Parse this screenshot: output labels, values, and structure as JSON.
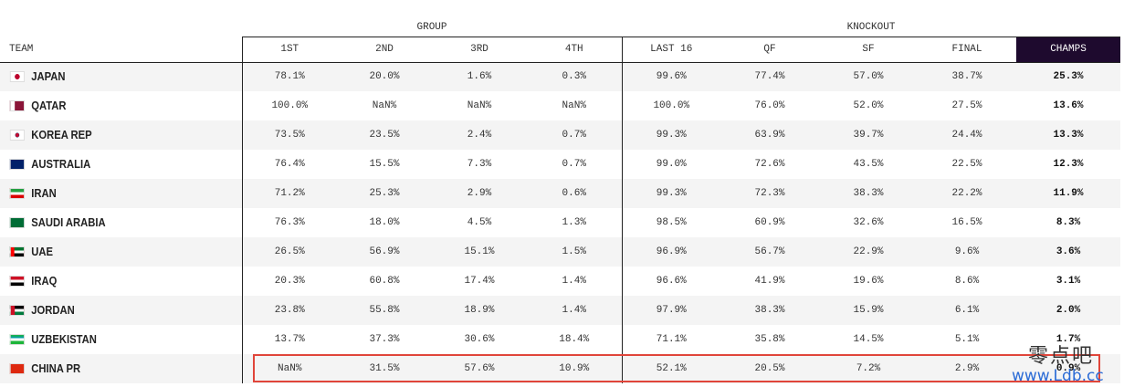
{
  "header": {
    "groups": [
      "GROUP",
      "KNOCKOUT"
    ],
    "columns": [
      "TEAM",
      "1ST",
      "2ND",
      "3RD",
      "4TH",
      "LAST 16",
      "QF",
      "SF",
      "FINAL",
      "CHAMPS"
    ]
  },
  "rows": [
    {
      "team": "JAPAN",
      "values": [
        "78.1%",
        "20.0%",
        "1.6%",
        "0.3%",
        "99.6%",
        "77.4%",
        "57.0%",
        "38.7%",
        "25.3%"
      ]
    },
    {
      "team": "QATAR",
      "values": [
        "100.0%",
        "NaN%",
        "NaN%",
        "NaN%",
        "100.0%",
        "76.0%",
        "52.0%",
        "27.5%",
        "13.6%"
      ]
    },
    {
      "team": "KOREA REP",
      "values": [
        "73.5%",
        "23.5%",
        "2.4%",
        "0.7%",
        "99.3%",
        "63.9%",
        "39.7%",
        "24.4%",
        "13.3%"
      ]
    },
    {
      "team": "AUSTRALIA",
      "values": [
        "76.4%",
        "15.5%",
        "7.3%",
        "0.7%",
        "99.0%",
        "72.6%",
        "43.5%",
        "22.5%",
        "12.3%"
      ]
    },
    {
      "team": "IRAN",
      "values": [
        "71.2%",
        "25.3%",
        "2.9%",
        "0.6%",
        "99.3%",
        "72.3%",
        "38.3%",
        "22.2%",
        "11.9%"
      ]
    },
    {
      "team": "SAUDI ARABIA",
      "values": [
        "76.3%",
        "18.0%",
        "4.5%",
        "1.3%",
        "98.5%",
        "60.9%",
        "32.6%",
        "16.5%",
        "8.3%"
      ]
    },
    {
      "team": "UAE",
      "values": [
        "26.5%",
        "56.9%",
        "15.1%",
        "1.5%",
        "96.9%",
        "56.7%",
        "22.9%",
        "9.6%",
        "3.6%"
      ]
    },
    {
      "team": "IRAQ",
      "values": [
        "20.3%",
        "60.8%",
        "17.4%",
        "1.4%",
        "96.6%",
        "41.9%",
        "19.6%",
        "8.6%",
        "3.1%"
      ]
    },
    {
      "team": "JORDAN",
      "values": [
        "23.8%",
        "55.8%",
        "18.9%",
        "1.4%",
        "97.9%",
        "38.3%",
        "15.9%",
        "6.1%",
        "2.0%"
      ]
    },
    {
      "team": "UZBEKISTAN",
      "values": [
        "13.7%",
        "37.3%",
        "30.6%",
        "18.4%",
        "71.1%",
        "35.8%",
        "14.5%",
        "5.1%",
        "1.7%"
      ]
    },
    {
      "team": "CHINA PR",
      "values": [
        "NaN%",
        "31.5%",
        "57.6%",
        "10.9%",
        "52.1%",
        "20.5%",
        "7.2%",
        "2.9%",
        "0.9%"
      ]
    }
  ],
  "watermark": {
    "name": "零点吧",
    "url": "www.Ldb.cc"
  }
}
